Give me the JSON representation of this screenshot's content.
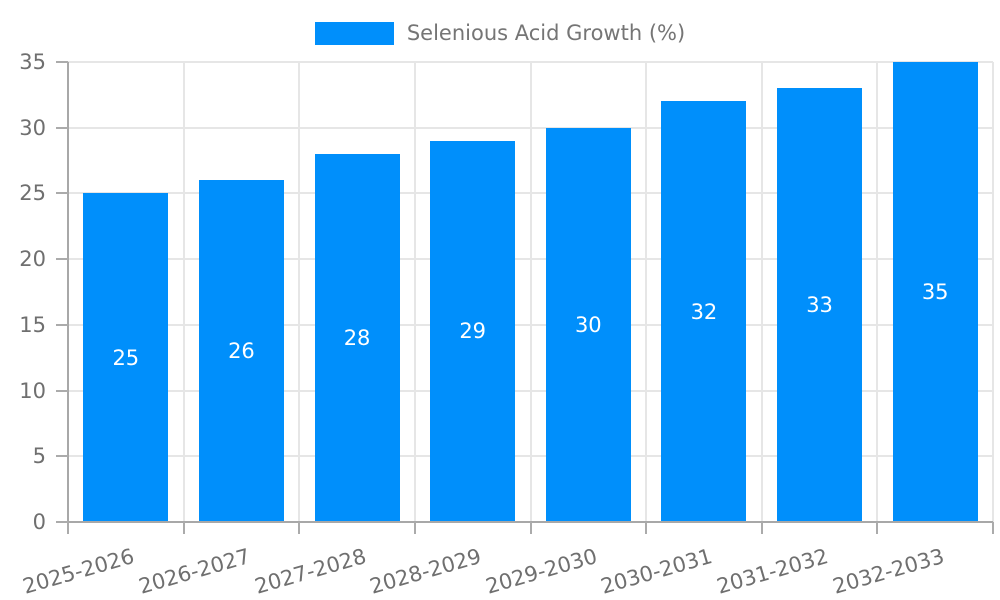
{
  "legend": {
    "label": "Selenious Acid Growth (%)"
  },
  "chart_data": {
    "type": "bar",
    "title": "",
    "categories": [
      "2025-2026",
      "2026-2027",
      "2027-2028",
      "2028-2029",
      "2029-2030",
      "2030-2031",
      "2031-2032",
      "2032-2033"
    ],
    "values": [
      25,
      26,
      28,
      29,
      30,
      32,
      33,
      35
    ],
    "series_name": "Selenious Acid Growth (%)",
    "xlabel": "",
    "ylabel": "",
    "ylim": [
      0,
      35
    ],
    "yticks": [
      0,
      5,
      10,
      15,
      20,
      25,
      30,
      35
    ],
    "grid": "on",
    "legend_position": "top-center",
    "value_labels": "inside-middle",
    "colors": {
      "bar": "#008FFB",
      "value_label": "#ffffff",
      "axis_text": "#6f6f6f",
      "legend_text": "#757575",
      "gridline": "#e6e6e6",
      "axis_line": "#a8a8a8",
      "background": "#ffffff"
    }
  }
}
